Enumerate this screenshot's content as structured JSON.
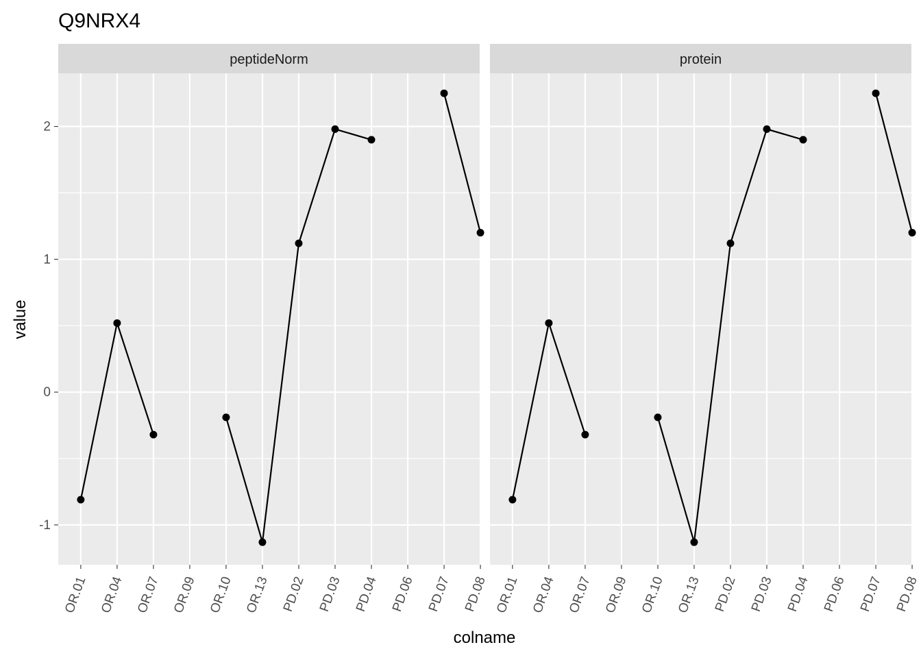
{
  "chart_data": {
    "type": "line",
    "title": "Q9NRX4",
    "xlabel": "colname",
    "ylabel": "value",
    "categories": [
      "OR.01",
      "OR.04",
      "OR.07",
      "OR.09",
      "OR.10",
      "OR.13",
      "PD.02",
      "PD.03",
      "PD.04",
      "PD.06",
      "PD.07",
      "PD.08"
    ],
    "ylim": [
      -1.3,
      2.4
    ],
    "yticks": [
      -1,
      0,
      1,
      2
    ],
    "ytick_labels": [
      "-1",
      "0",
      "1",
      "2"
    ],
    "grid": true,
    "panels": [
      {
        "name": "peptideNorm",
        "values": [
          -0.81,
          0.52,
          -0.32,
          null,
          -0.19,
          -1.13,
          1.12,
          1.98,
          1.9,
          null,
          2.25,
          1.2
        ]
      },
      {
        "name": "protein",
        "values": [
          -0.81,
          0.52,
          -0.32,
          null,
          -0.19,
          -1.13,
          1.12,
          1.98,
          1.9,
          null,
          2.25,
          1.2
        ]
      }
    ],
    "colors": {
      "panel_bg": "#ebebeb",
      "strip_bg": "#d9d9d9",
      "grid": "#ffffff",
      "line": "#000000",
      "point": "#000000",
      "tick_text": "#4d4d4d",
      "strip_text": "#1a1a1a"
    }
  }
}
